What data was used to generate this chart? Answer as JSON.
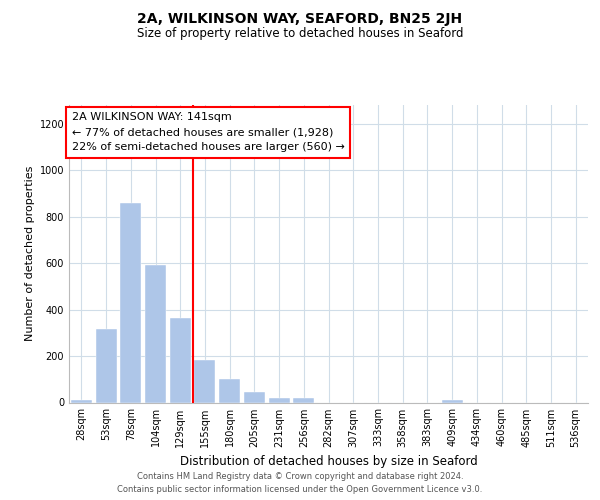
{
  "title": "2A, WILKINSON WAY, SEAFORD, BN25 2JH",
  "subtitle": "Size of property relative to detached houses in Seaford",
  "xlabel": "Distribution of detached houses by size in Seaford",
  "ylabel": "Number of detached properties",
  "categories": [
    "28sqm",
    "53sqm",
    "78sqm",
    "104sqm",
    "129sqm",
    "155sqm",
    "180sqm",
    "205sqm",
    "231sqm",
    "256sqm",
    "282sqm",
    "307sqm",
    "333sqm",
    "358sqm",
    "383sqm",
    "409sqm",
    "434sqm",
    "460sqm",
    "485sqm",
    "511sqm",
    "536sqm"
  ],
  "bar_values": [
    10,
    315,
    860,
    590,
    365,
    185,
    100,
    47,
    20,
    20,
    0,
    0,
    0,
    0,
    0,
    10,
    0,
    0,
    0,
    0,
    0
  ],
  "bar_color": "#aec6e8",
  "vline_index": 4,
  "vline_color": "red",
  "vline_linewidth": 1.5,
  "annotation_lines": [
    "2A WILKINSON WAY: 141sqm",
    "← 77% of detached houses are smaller (1,928)",
    "22% of semi-detached houses are larger (560) →"
  ],
  "ylim": [
    0,
    1280
  ],
  "yticks": [
    0,
    200,
    400,
    600,
    800,
    1000,
    1200
  ],
  "footer_line1": "Contains HM Land Registry data © Crown copyright and database right 2024.",
  "footer_line2": "Contains public sector information licensed under the Open Government Licence v3.0.",
  "bg_color": "#ffffff",
  "grid_color": "#d0dde8",
  "title_fontsize": 10,
  "subtitle_fontsize": 8.5,
  "xlabel_fontsize": 8.5,
  "ylabel_fontsize": 8,
  "tick_fontsize": 7,
  "annotation_fontsize": 8,
  "footer_fontsize": 6
}
